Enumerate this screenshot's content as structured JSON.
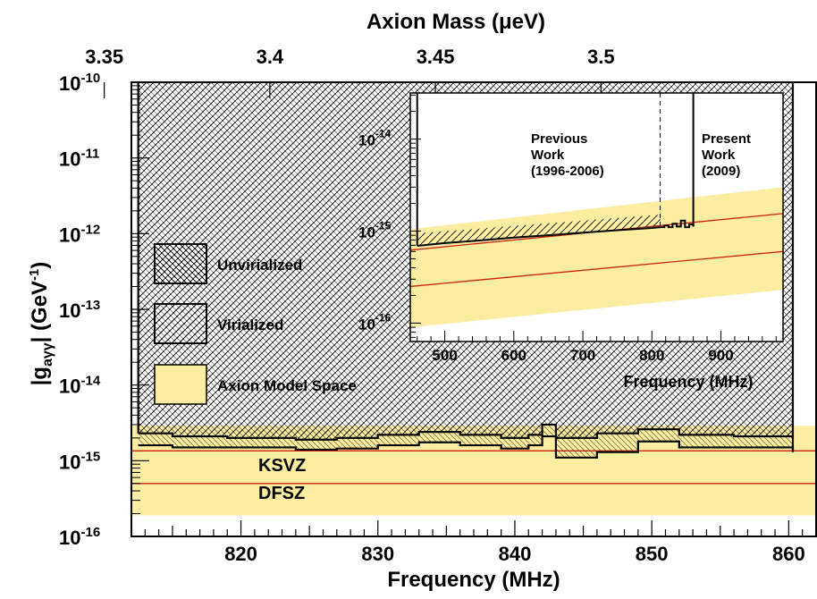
{
  "chart_data": [
    {
      "type": "line",
      "xlabel": "Frequency (MHz)",
      "ylabel": "|g_{aγγ}| (GeV^{-1})",
      "top_axis_label": "Axion Mass (μeV)",
      "xlim": [
        812,
        862
      ],
      "ylim_log10": [
        -16,
        -10
      ],
      "log_y": true,
      "x_ticks": [
        820,
        830,
        840,
        850,
        860
      ],
      "top_ticks": [
        "3.35",
        "3.4",
        "3.45",
        "3.5"
      ],
      "top_tick_freq": [
        810.02,
        822.11,
        834.2,
        846.29
      ],
      "y_ticks": [
        {
          "exp": -10,
          "label": "10",
          "sup": "-10"
        },
        {
          "exp": -11,
          "label": "10",
          "sup": "-11"
        },
        {
          "exp": -12,
          "label": "10",
          "sup": "-12"
        },
        {
          "exp": -13,
          "label": "10",
          "sup": "-13"
        },
        {
          "exp": -14,
          "label": "10",
          "sup": "-14"
        },
        {
          "exp": -15,
          "label": "10",
          "sup": "-15"
        },
        {
          "exp": -16,
          "label": "10",
          "sup": "-16"
        }
      ],
      "scan_range": [
        812.5,
        860.3
      ],
      "virialized_limit": {
        "x": [
          812.5,
          815,
          819,
          824,
          827,
          830,
          833,
          836,
          839,
          841,
          842,
          843,
          846,
          849,
          852,
          856,
          860.3
        ],
        "y": [
          2.3e-15,
          2.1e-15,
          2e-15,
          1.9e-15,
          2e-15,
          2.2e-15,
          2.4e-15,
          2.2e-15,
          2e-15,
          2.2e-15,
          3e-15,
          2e-15,
          2.3e-15,
          2.6e-15,
          2.2e-15,
          2.1e-15,
          2.1e-15
        ]
      },
      "unvirialized_limit": {
        "x": [
          812.5,
          815,
          819,
          824,
          827,
          830,
          833,
          836,
          839,
          841,
          842,
          843,
          846,
          849,
          852,
          856,
          860.3
        ],
        "y": [
          1.6e-15,
          1.5e-15,
          1.5e-15,
          1.4e-15,
          1.45e-15,
          1.6e-15,
          1.75e-15,
          1.6e-15,
          1.45e-15,
          1.6e-15,
          2.1e-15,
          1.1e-15,
          1.3e-15,
          1.8e-15,
          1.5e-15,
          1.5e-15,
          1.3e-15
        ]
      },
      "model_band": {
        "low": 1.9e-16,
        "high": 2.9e-15
      },
      "ksvz": 1.35e-15,
      "dfsz": 5e-16,
      "annotations": {
        "ksvz_label": "KSVZ",
        "dfsz_label": "DFSZ"
      },
      "legend": [
        {
          "label": "Unvirialized",
          "style": "dense-hatch"
        },
        {
          "label": "Virialized",
          "style": "sparse-hatch"
        },
        {
          "label": "Axion Model Space",
          "style": "yellow-fill"
        }
      ],
      "colors": {
        "band": "#fbeea0",
        "model_lines": "#cc2211",
        "limit": "#000000"
      }
    },
    {
      "type": "line",
      "xlabel": "Frequency (MHz)",
      "xlim": [
        450,
        990
      ],
      "ylim_log10": [
        -16.2,
        -13.5
      ],
      "log_y": true,
      "x_ticks": [
        500,
        600,
        700,
        800,
        900
      ],
      "y_ticks": [
        {
          "exp": -14,
          "label": "10",
          "sup": "-14"
        },
        {
          "exp": -15,
          "label": "10",
          "sup": "-15"
        },
        {
          "exp": -16,
          "label": "10",
          "sup": "-16"
        }
      ],
      "previous_range": [
        460,
        812
      ],
      "present_range": [
        812,
        860
      ],
      "previous_limit": {
        "x": [
          460,
          500,
          550,
          600,
          650,
          700,
          750,
          800,
          812
        ],
        "y": [
          6.9e-16,
          7.4e-16,
          7.9e-16,
          8.5e-16,
          9e-16,
          9.6e-16,
          1.02e-15,
          1.08e-15,
          1.1e-15
        ]
      },
      "present_limit": {
        "x": [
          812,
          818,
          824,
          830,
          836,
          842,
          848,
          854,
          860
        ],
        "y": [
          1.1e-15,
          1.15e-15,
          1.1e-15,
          1.2e-15,
          1.12e-15,
          1.3e-15,
          1.1e-15,
          1.18e-15,
          1.12e-15
        ]
      },
      "model_band": {
        "x": [
          450,
          990
        ],
        "low": [
          9e-17,
          2.3e-16
        ],
        "high": [
          1.05e-15,
          3e-15
        ]
      },
      "ksvz": {
        "x": [
          450,
          990
        ],
        "y": [
          6.2e-16,
          1.55e-15
        ]
      },
      "dfsz": {
        "x": [
          450,
          990
        ],
        "y": [
          2.5e-16,
          6e-16
        ]
      },
      "annotations": {
        "previous": [
          "Previous",
          "Work",
          "(1996-2006)"
        ],
        "present": [
          "Present",
          "Work",
          "(2009)"
        ]
      }
    }
  ]
}
